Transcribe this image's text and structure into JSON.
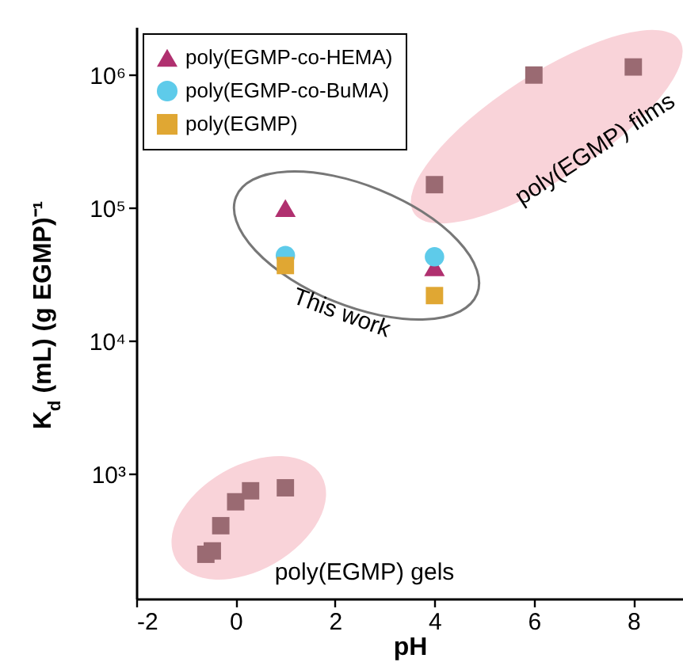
{
  "chart_data": {
    "type": "scatter",
    "xlabel": "pH",
    "ylabel": "K$_{d}$ (mL) (g EGMP)⁻¹",
    "log": "y",
    "grid": false,
    "legend": "top left",
    "xlim": [
      -2,
      9
    ],
    "xticks": [
      -2,
      0,
      2,
      4,
      6,
      8
    ],
    "ylim": [
      116,
      2300000
    ],
    "yticks": [
      {
        "value": 1000,
        "label": "10³"
      },
      {
        "value": 10000,
        "label": "10⁴"
      },
      {
        "value": 100000,
        "label": "10⁵"
      },
      {
        "value": 1000000,
        "label": "10⁶"
      }
    ],
    "annotations": [
      "This work",
      "poly(EGMP) films",
      "poly(EGMP) gels"
    ],
    "series": [
      {
        "name": "poly(EGMP-co-HEMA)",
        "color": "#b0306f",
        "marker": "triangle",
        "x": [
          1,
          4
        ],
        "values": [
          100000,
          36000
        ]
      },
      {
        "name": "poly(EGMP-co-BuMA)",
        "color": "#5ecbea",
        "marker": "circle",
        "x": [
          1,
          4
        ],
        "values": [
          44000,
          43000
        ]
      },
      {
        "name": "poly(EGMP)",
        "color": "#e0a733",
        "marker": "square",
        "x": [
          1,
          4
        ],
        "values": [
          37000,
          22000
        ]
      },
      {
        "color": "#9a6a72",
        "marker": "square",
        "x": [
          4,
          6,
          8
        ],
        "values": [
          150000,
          1000000,
          1150000
        ]
      },
      {
        "color": "#9a6a72",
        "marker": "square",
        "x": [
          -0.6,
          -0.47,
          -0.3,
          0,
          0.3,
          1
        ],
        "values": [
          250,
          265,
          410,
          620,
          750,
          790
        ]
      }
    ]
  }
}
